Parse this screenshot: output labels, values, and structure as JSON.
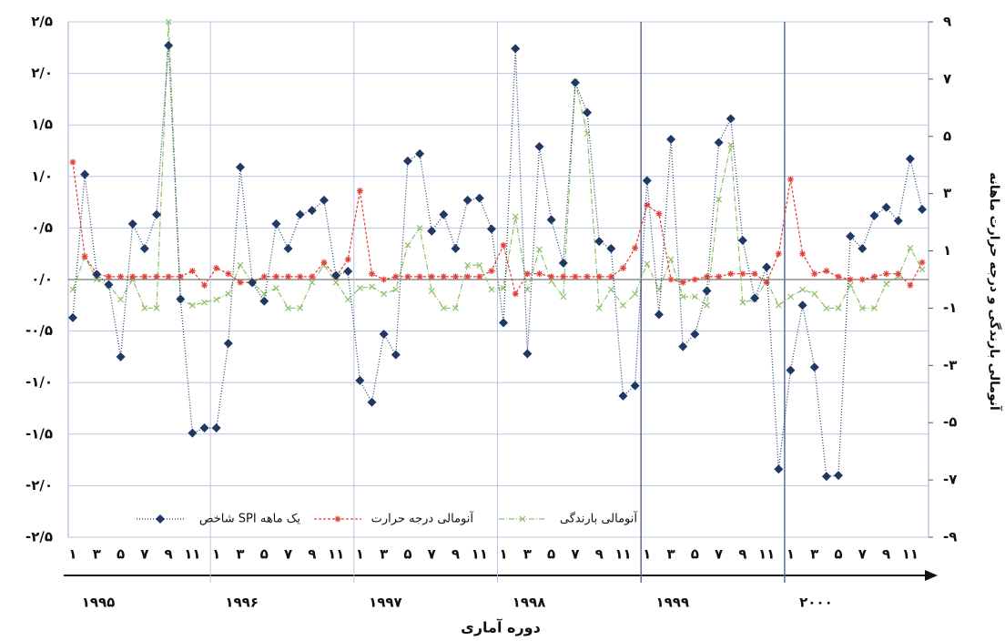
{
  "chart_data": {
    "type": "line",
    "x_title": "دوره آماری",
    "y2_title": "آنومالی بارندگی و درجه حرارت ماهانه",
    "years": [
      "۱۹۹۵",
      "۱۹۹۶",
      "۱۹۹۷",
      "۱۹۹۸",
      "۱۹۹۹",
      "۲۰۰۰"
    ],
    "categories": [
      "۱",
      null,
      "۳",
      null,
      "۵",
      null,
      "۷",
      null,
      "۹",
      null,
      "۱۱",
      null,
      "۱",
      null,
      "۳",
      null,
      "۵",
      null,
      "۷",
      null,
      "۹",
      null,
      "۱۱",
      null,
      "۱",
      null,
      "۳",
      null,
      "۵",
      null,
      "۷",
      null,
      "۹",
      null,
      "۱۱",
      null,
      "۱",
      null,
      "۳",
      null,
      "۵",
      null,
      "۷",
      null,
      "۹",
      null,
      "۱۱",
      null,
      "۱",
      null,
      "۳",
      null,
      "۵",
      null,
      "۷",
      null,
      "۹",
      null,
      "۱۱",
      null,
      "۱",
      null,
      "۳",
      null,
      "۵",
      null,
      "۷",
      null,
      "۹",
      null,
      "۱۱",
      null
    ],
    "ylim": [
      -2.5,
      2.5
    ],
    "yticks": [
      {
        "value": 2.5,
        "label": "۲/۵"
      },
      {
        "value": 2,
        "label": "۲/۰"
      },
      {
        "value": 1.5,
        "label": "۱/۵"
      },
      {
        "value": 1,
        "label": "۱/۰"
      },
      {
        "value": 0.5,
        "label": "۰/۵"
      },
      {
        "value": 0,
        "label": "۰/۰"
      },
      {
        "value": -0.5,
        "label": "-۰/۵"
      },
      {
        "value": -1,
        "label": "-۱/۰"
      },
      {
        "value": -1.5,
        "label": "-۱/۵"
      },
      {
        "value": -2,
        "label": "-۲/۰"
      },
      {
        "value": -2.5,
        "label": "-۲/۵"
      }
    ],
    "y2lim": [
      -9,
      9
    ],
    "y2ticks": [
      {
        "value": 9,
        "label": "۹"
      },
      {
        "value": 7,
        "label": "۷"
      },
      {
        "value": 5,
        "label": "۵"
      },
      {
        "value": 3,
        "label": "۳"
      },
      {
        "value": 1,
        "label": "۱"
      },
      {
        "value": -1,
        "label": "-۱"
      },
      {
        "value": -3,
        "label": "-۳"
      },
      {
        "value": -5,
        "label": "-۵"
      },
      {
        "value": -7,
        "label": "-۷"
      },
      {
        "value": -9,
        "label": "-۹"
      }
    ],
    "grid": true,
    "legend": "bottom",
    "series": [
      {
        "name": "شاخص SPI یک ماهه",
        "color": "#1f3864",
        "marker": "diamond",
        "dash": "1,2",
        "values": [
          -0.37,
          1.02,
          0.05,
          -0.05,
          -0.75,
          0.54,
          0.3,
          0.63,
          2.27,
          -0.19,
          -1.49,
          -1.44,
          -1.44,
          -0.62,
          1.09,
          -0.03,
          -0.21,
          0.54,
          0.3,
          0.63,
          0.67,
          0.77,
          0.04,
          0.08,
          -0.98,
          -1.19,
          -0.53,
          -0.73,
          1.15,
          1.22,
          0.47,
          0.63,
          0.3,
          0.77,
          0.79,
          0.49,
          -0.42,
          2.24,
          -0.72,
          1.29,
          0.58,
          0.16,
          1.91,
          1.62,
          0.37,
          0.3,
          -1.13,
          -1.03,
          0.96,
          -0.34,
          1.36,
          -0.65,
          -0.53,
          -0.11,
          1.33,
          1.56,
          0.38,
          -0.18,
          0.12,
          -1.84,
          -0.88,
          -0.25,
          -0.85,
          -1.91,
          -1.9,
          0.42,
          0.3,
          0.62,
          0.7,
          0.57,
          1.17,
          0.68
        ]
      },
      {
        "name": "آنومالی درجه حرارت",
        "color": "#e0403a",
        "marker": "star",
        "dash": "3,2",
        "axis": "y2",
        "values": [
          4.1,
          0.8,
          0.2,
          0.1,
          0.1,
          0.1,
          0.1,
          0.1,
          0.1,
          0.1,
          0.3,
          -0.2,
          0.4,
          0.2,
          -0.1,
          -0.1,
          0.1,
          0.1,
          0.1,
          0.1,
          0.1,
          0.6,
          0.1,
          0.7,
          3.1,
          0.2,
          0,
          0.1,
          0.1,
          0.1,
          0.1,
          0.1,
          0.1,
          0.1,
          0.1,
          0.3,
          1.2,
          -0.5,
          0.2,
          0.2,
          0.1,
          0.1,
          0.1,
          0.1,
          0.1,
          0.1,
          0.4,
          1.1,
          2.6,
          2.3,
          0,
          -0.1,
          0,
          0.1,
          0.1,
          0.2,
          0.2,
          0.2,
          -0.1,
          0.9,
          3.5,
          0.9,
          0.2,
          0.3,
          0.1,
          0,
          0,
          0.1,
          0.2,
          0.2,
          -0.2,
          0.6
        ]
      },
      {
        "name": "آنومالی بارندگی",
        "color": "#8fbf6a",
        "marker": "x",
        "dash": "6,2,1,2",
        "axis": "y2",
        "values": [
          -0.35,
          0.8,
          0,
          -0.2,
          -0.7,
          0,
          -1,
          -1,
          9,
          -0.7,
          -0.9,
          -0.8,
          -0.7,
          -0.5,
          0.5,
          -0.1,
          -0.5,
          -0.3,
          -1,
          -1,
          -0.1,
          0.5,
          -0.1,
          -0.7,
          -0.3,
          -0.25,
          -0.5,
          -0.35,
          1.2,
          1.8,
          -0.4,
          -1,
          -1,
          0.5,
          0.5,
          -0.35,
          -0.3,
          2.2,
          -0.35,
          1.05,
          -0.05,
          -0.6,
          6.9,
          5.1,
          -1,
          -0.35,
          -0.9,
          -0.5,
          0.55,
          -0.35,
          0.7,
          -0.6,
          -0.6,
          -0.9,
          2.8,
          4.7,
          -0.8,
          -0.7,
          -0.05,
          -0.9,
          -0.6,
          -0.35,
          -0.5,
          -1,
          -1,
          -0.2,
          -1,
          -1,
          -0.15,
          0.1,
          1.1,
          0.35
        ]
      }
    ]
  }
}
